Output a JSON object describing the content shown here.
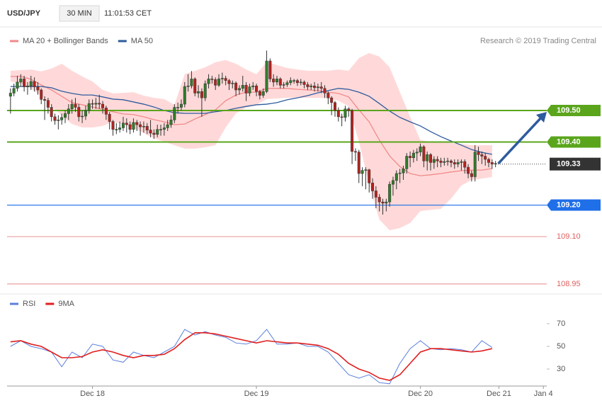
{
  "chart_data": {
    "type": "candlestick",
    "symbol": "USD/JPY",
    "interval": "30 MIN",
    "time": "11:01:53 CET",
    "credit": "Research © 2019 Trading Central",
    "up_color": "#2f7d2a",
    "down_color": "#b3241f",
    "xlim": [
      -1,
      157
    ],
    "xticks": [
      {
        "value": 24,
        "label": "Dec 18"
      },
      {
        "value": 72,
        "label": "Dec 19"
      },
      {
        "value": 120,
        "label": "Dec 20"
      },
      {
        "value": 143,
        "label": "Dec 21"
      },
      {
        "value": 156,
        "label": "Jan 4"
      }
    ],
    "ylim": [
      108.925,
      109.72
    ],
    "levels": [
      {
        "value": 109.5,
        "label": "109.50",
        "color": "#5aa51c",
        "style": "box"
      },
      {
        "value": 109.4,
        "label": "109.40",
        "color": "#5aa51c",
        "style": "box"
      },
      {
        "value": 109.33,
        "label": "109.33",
        "color": "#333333",
        "style": "dotted"
      },
      {
        "value": 109.2,
        "label": "109.20",
        "color": "#1f6fe8",
        "style": "box"
      },
      {
        "value": 109.1,
        "label": "109.10",
        "color": "#e06060",
        "style": "text"
      },
      {
        "value": 108.95,
        "label": "108.95",
        "color": "#e06060",
        "style": "text"
      }
    ],
    "candles": [
      [
        109.545,
        109.57,
        109.49,
        109.555
      ],
      [
        109.555,
        109.585,
        109.545,
        109.57
      ],
      [
        109.57,
        109.61,
        109.56,
        109.59
      ],
      [
        109.59,
        109.615,
        109.575,
        109.6
      ],
      [
        109.6,
        109.61,
        109.56,
        109.575
      ],
      [
        109.575,
        109.59,
        109.55,
        109.578
      ],
      [
        109.578,
        109.61,
        109.565,
        109.592
      ],
      [
        109.592,
        109.605,
        109.56,
        109.575
      ],
      [
        109.575,
        109.59,
        109.55,
        109.565
      ],
      [
        109.565,
        109.57,
        109.52,
        109.535
      ],
      [
        109.535,
        109.545,
        109.47,
        109.532
      ],
      [
        109.532,
        109.54,
        109.49,
        109.51
      ],
      [
        109.51,
        109.52,
        109.465,
        109.48
      ],
      [
        109.48,
        109.49,
        109.455,
        109.468
      ],
      [
        109.468,
        109.485,
        109.44,
        109.47
      ],
      [
        109.47,
        109.49,
        109.455,
        109.478
      ],
      [
        109.478,
        109.5,
        109.46,
        109.49
      ],
      [
        109.49,
        109.52,
        109.47,
        109.505
      ],
      [
        109.505,
        109.535,
        109.49,
        109.52
      ],
      [
        109.52,
        109.54,
        109.495,
        109.51
      ],
      [
        109.51,
        109.52,
        109.465,
        109.48
      ],
      [
        109.48,
        109.5,
        109.46,
        109.482
      ],
      [
        109.482,
        109.515,
        109.47,
        109.5
      ],
      [
        109.5,
        109.535,
        109.49,
        109.522
      ],
      [
        109.522,
        109.535,
        109.505,
        109.52
      ],
      [
        109.52,
        109.54,
        109.505,
        109.523
      ],
      [
        109.523,
        109.55,
        109.505,
        109.52
      ],
      [
        109.52,
        109.53,
        109.49,
        109.508
      ],
      [
        109.508,
        109.515,
        109.47,
        109.488
      ],
      [
        109.488,
        109.495,
        109.44,
        109.465
      ],
      [
        109.465,
        109.47,
        109.42,
        109.44
      ],
      [
        109.44,
        109.46,
        109.425,
        109.44
      ],
      [
        109.44,
        109.465,
        109.43,
        109.445
      ],
      [
        109.445,
        109.48,
        109.435,
        109.46
      ],
      [
        109.46,
        109.475,
        109.43,
        109.455
      ],
      [
        109.455,
        109.465,
        109.425,
        109.44
      ],
      [
        109.44,
        109.475,
        109.43,
        109.462
      ],
      [
        109.462,
        109.47,
        109.435,
        109.455
      ],
      [
        109.455,
        109.465,
        109.42,
        109.448
      ],
      [
        109.448,
        109.465,
        109.43,
        109.45
      ],
      [
        109.45,
        109.46,
        109.425,
        109.438
      ],
      [
        109.438,
        109.47,
        109.415,
        109.428
      ],
      [
        109.428,
        109.44,
        109.41,
        109.424
      ],
      [
        109.424,
        109.455,
        109.415,
        109.44
      ],
      [
        109.44,
        109.455,
        109.42,
        109.44
      ],
      [
        109.44,
        109.46,
        109.42,
        109.445
      ],
      [
        109.445,
        109.47,
        109.435,
        109.455
      ],
      [
        109.455,
        109.485,
        109.445,
        109.47
      ],
      [
        109.47,
        109.52,
        109.46,
        109.51
      ],
      [
        109.51,
        109.525,
        109.49,
        109.51
      ],
      [
        109.51,
        109.535,
        109.5,
        109.52
      ],
      [
        109.52,
        109.59,
        109.51,
        109.576
      ],
      [
        109.576,
        109.615,
        109.56,
        109.578
      ],
      [
        109.578,
        109.625,
        109.57,
        109.6
      ],
      [
        109.6,
        109.605,
        109.545,
        109.555
      ],
      [
        109.555,
        109.58,
        109.54,
        109.56
      ],
      [
        109.56,
        109.57,
        109.48,
        109.54
      ],
      [
        109.54,
        109.595,
        109.53,
        109.585
      ],
      [
        109.585,
        109.615,
        109.57,
        109.6
      ],
      [
        109.6,
        109.61,
        109.585,
        109.598
      ],
      [
        109.598,
        109.605,
        109.565,
        109.58
      ],
      [
        109.58,
        109.615,
        109.575,
        109.6
      ],
      [
        109.6,
        109.62,
        109.585,
        109.602
      ],
      [
        109.602,
        109.61,
        109.58,
        109.595
      ],
      [
        109.595,
        109.6,
        109.565,
        109.585
      ],
      [
        109.585,
        109.595,
        109.57,
        109.587
      ],
      [
        109.587,
        109.592,
        109.545,
        109.565
      ],
      [
        109.565,
        109.58,
        109.55,
        109.57
      ],
      [
        109.57,
        109.61,
        109.56,
        109.58
      ],
      [
        109.58,
        109.59,
        109.53,
        109.555
      ],
      [
        109.555,
        109.585,
        109.545,
        109.575
      ],
      [
        109.575,
        109.59,
        109.565,
        109.578
      ],
      [
        109.578,
        109.585,
        109.545,
        109.56
      ],
      [
        109.56,
        109.565,
        109.535,
        109.548
      ],
      [
        109.548,
        109.57,
        109.54,
        109.56
      ],
      [
        109.56,
        109.69,
        109.555,
        109.657
      ],
      [
        109.657,
        109.665,
        109.59,
        109.6
      ],
      [
        109.6,
        109.615,
        109.575,
        109.59
      ],
      [
        109.59,
        109.61,
        109.58,
        109.6
      ],
      [
        109.6,
        109.605,
        109.57,
        109.58
      ],
      [
        109.58,
        109.59,
        109.57,
        109.582
      ],
      [
        109.582,
        109.595,
        109.575,
        109.588
      ],
      [
        109.588,
        109.605,
        109.58,
        109.595
      ],
      [
        109.595,
        109.6,
        109.585,
        109.595
      ],
      [
        109.595,
        109.6,
        109.578,
        109.588
      ],
      [
        109.588,
        109.6,
        109.58,
        109.59
      ],
      [
        109.59,
        109.595,
        109.57,
        109.582
      ],
      [
        109.582,
        109.59,
        109.565,
        109.575
      ],
      [
        109.575,
        109.585,
        109.565,
        109.578
      ],
      [
        109.578,
        109.59,
        109.56,
        109.572
      ],
      [
        109.572,
        109.585,
        109.56,
        109.575
      ],
      [
        109.575,
        109.59,
        109.555,
        109.57
      ],
      [
        109.57,
        109.58,
        109.54,
        109.555
      ],
      [
        109.555,
        109.56,
        109.52,
        109.54
      ],
      [
        109.54,
        109.545,
        109.485,
        109.525
      ],
      [
        109.525,
        109.53,
        109.48,
        109.5
      ],
      [
        109.5,
        109.51,
        109.465,
        109.48
      ],
      [
        109.48,
        109.49,
        109.45,
        109.478
      ],
      [
        109.478,
        109.515,
        109.465,
        109.505
      ],
      [
        109.505,
        109.51,
        109.48,
        109.5
      ],
      [
        109.5,
        109.505,
        109.33,
        109.37
      ],
      [
        109.37,
        109.38,
        109.34,
        109.368
      ],
      [
        109.368,
        109.375,
        109.27,
        109.3
      ],
      [
        109.3,
        109.32,
        109.26,
        109.31
      ],
      [
        109.31,
        109.32,
        109.25,
        109.312
      ],
      [
        109.312,
        109.315,
        109.24,
        109.27
      ],
      [
        109.27,
        109.285,
        109.22,
        109.245
      ],
      [
        109.245,
        109.26,
        109.19,
        109.225
      ],
      [
        109.225,
        109.235,
        109.18,
        109.21
      ],
      [
        109.21,
        109.22,
        109.17,
        109.206
      ],
      [
        109.206,
        109.22,
        109.18,
        109.21
      ],
      [
        109.21,
        109.275,
        109.195,
        109.266
      ],
      [
        109.266,
        109.29,
        109.23,
        109.278
      ],
      [
        109.278,
        109.31,
        109.25,
        109.3
      ],
      [
        109.3,
        109.315,
        109.27,
        109.302
      ],
      [
        109.302,
        109.325,
        109.28,
        109.315
      ],
      [
        109.315,
        109.365,
        109.3,
        109.355
      ],
      [
        109.355,
        109.37,
        109.32,
        109.35
      ],
      [
        109.35,
        109.375,
        109.335,
        109.365
      ],
      [
        109.365,
        109.38,
        109.34,
        109.368
      ],
      [
        109.368,
        109.395,
        109.355,
        109.385
      ],
      [
        109.385,
        109.39,
        109.32,
        109.34
      ],
      [
        109.34,
        109.37,
        109.31,
        109.36
      ],
      [
        109.36,
        109.365,
        109.31,
        109.335
      ],
      [
        109.335,
        109.355,
        109.315,
        109.345
      ],
      [
        109.345,
        109.355,
        109.32,
        109.34
      ],
      [
        109.34,
        109.35,
        109.32,
        109.335
      ],
      [
        109.335,
        109.35,
        109.325,
        109.338
      ],
      [
        109.338,
        109.35,
        109.325,
        109.34
      ],
      [
        109.34,
        109.345,
        109.32,
        109.335
      ],
      [
        109.335,
        109.345,
        109.315,
        109.33
      ],
      [
        109.33,
        109.345,
        109.32,
        109.335
      ],
      [
        109.335,
        109.345,
        109.31,
        109.338
      ],
      [
        109.338,
        109.345,
        109.3,
        109.32
      ],
      [
        109.32,
        109.33,
        109.285,
        109.3
      ],
      [
        109.3,
        109.31,
        109.275,
        109.29
      ],
      [
        109.29,
        109.39,
        109.275,
        109.368
      ],
      [
        109.368,
        109.385,
        109.34,
        109.36
      ],
      [
        109.36,
        109.37,
        109.33,
        109.355
      ],
      [
        109.355,
        109.365,
        109.325,
        109.345
      ],
      [
        109.345,
        109.35,
        109.32,
        109.335
      ],
      [
        109.335,
        109.345,
        109.315,
        109.33
      ],
      [
        109.33,
        109.34,
        109.32,
        109.332
      ]
    ],
    "line_x": [
      0,
      3,
      6,
      9,
      12,
      15,
      18,
      21,
      24,
      27,
      30,
      33,
      36,
      39,
      42,
      45,
      48,
      51,
      54,
      57,
      60,
      63,
      66,
      69,
      72,
      75,
      78,
      81,
      84,
      87,
      90,
      93,
      96,
      99,
      102,
      105,
      108,
      111,
      114,
      117,
      120,
      123,
      126,
      129,
      132,
      135,
      138,
      141
    ],
    "bands": {
      "color": "#ffd9d9",
      "upper": [
        109.626,
        109.628,
        109.63,
        109.624,
        109.633,
        109.648,
        109.626,
        109.608,
        109.592,
        109.565,
        109.554,
        109.556,
        109.558,
        109.547,
        109.54,
        109.536,
        109.518,
        109.615,
        109.626,
        109.637,
        109.653,
        109.66,
        109.648,
        109.63,
        109.615,
        109.653,
        109.644,
        109.635,
        109.63,
        109.626,
        109.626,
        109.626,
        109.63,
        109.626,
        109.666,
        109.682,
        109.671,
        109.637,
        109.558,
        109.48,
        109.406,
        109.401,
        109.401,
        109.397,
        109.394,
        109.39,
        109.39,
        109.39
      ],
      "lower": [
        109.592,
        109.585,
        109.57,
        109.547,
        109.513,
        109.484,
        109.457,
        109.446,
        109.446,
        109.451,
        109.464,
        109.457,
        109.446,
        109.428,
        109.412,
        109.401,
        109.39,
        109.379,
        109.379,
        109.383,
        109.39,
        109.446,
        109.491,
        109.509,
        109.518,
        109.536,
        109.538,
        109.54,
        109.54,
        109.54,
        109.54,
        109.538,
        109.531,
        109.513,
        109.401,
        109.266,
        109.154,
        109.12,
        109.127,
        109.143,
        109.181,
        109.185,
        109.188,
        109.221,
        109.262,
        109.28,
        109.284,
        109.289
      ]
    },
    "series": [
      {
        "name": "MA 20 + Bollinger Bands",
        "color": "#f08a8a",
        "values": [
          109.608,
          109.608,
          109.599,
          109.581,
          109.565,
          109.545,
          109.525,
          109.518,
          109.511,
          109.504,
          109.496,
          109.489,
          109.487,
          109.48,
          109.471,
          109.464,
          109.455,
          109.457,
          109.473,
          109.487,
          109.502,
          109.531,
          109.549,
          109.558,
          109.558,
          109.57,
          109.57,
          109.57,
          109.567,
          109.565,
          109.563,
          109.558,
          109.554,
          109.543,
          109.502,
          109.464,
          109.406,
          109.356,
          109.322,
          109.3,
          109.293,
          109.296,
          109.3,
          109.305,
          109.309,
          109.311,
          109.311,
          109.316
        ]
      },
      {
        "name": "MA 50",
        "color": "#2e5b9e",
        "values": [
          109.576,
          109.576,
          109.576,
          109.576,
          109.572,
          109.561,
          109.554,
          109.549,
          109.549,
          109.543,
          109.536,
          109.534,
          109.527,
          109.52,
          109.511,
          109.5,
          109.493,
          109.491,
          109.491,
          109.491,
          109.496,
          109.5,
          109.507,
          109.513,
          109.518,
          109.52,
          109.525,
          109.534,
          109.54,
          109.547,
          109.556,
          109.563,
          109.57,
          109.567,
          109.558,
          109.545,
          109.522,
          109.498,
          109.478,
          109.464,
          109.451,
          109.433,
          109.417,
          109.403,
          109.39,
          109.376,
          109.367,
          109.361
        ]
      }
    ],
    "rsi": {
      "ylim": [
        15,
        80
      ],
      "yticks": [
        30,
        50,
        70
      ],
      "series": [
        {
          "name": "RSI",
          "color": "#5b7fdc",
          "values": [
            50,
            55,
            50,
            48,
            45,
            32,
            45,
            40,
            52,
            50,
            38,
            36,
            45,
            42,
            40,
            45,
            50,
            65,
            60,
            63,
            60,
            58,
            53,
            52,
            55,
            65,
            52,
            52,
            53,
            50,
            50,
            45,
            35,
            25,
            22,
            25,
            18,
            17,
            35,
            48,
            55,
            48,
            47,
            48,
            47,
            45,
            55,
            49
          ]
        },
        {
          "name": "9MA",
          "color": "#e01e1e",
          "values": [
            54,
            55,
            52,
            50,
            45,
            40,
            40,
            41,
            45,
            47,
            45,
            42,
            40,
            42,
            42,
            43,
            48,
            56,
            62,
            62,
            61,
            59,
            57,
            55,
            53,
            55,
            54,
            53,
            53,
            52,
            51,
            48,
            43,
            35,
            30,
            27,
            22,
            20,
            25,
            35,
            45,
            48,
            48,
            47,
            46,
            45,
            46,
            48
          ]
        }
      ]
    }
  }
}
